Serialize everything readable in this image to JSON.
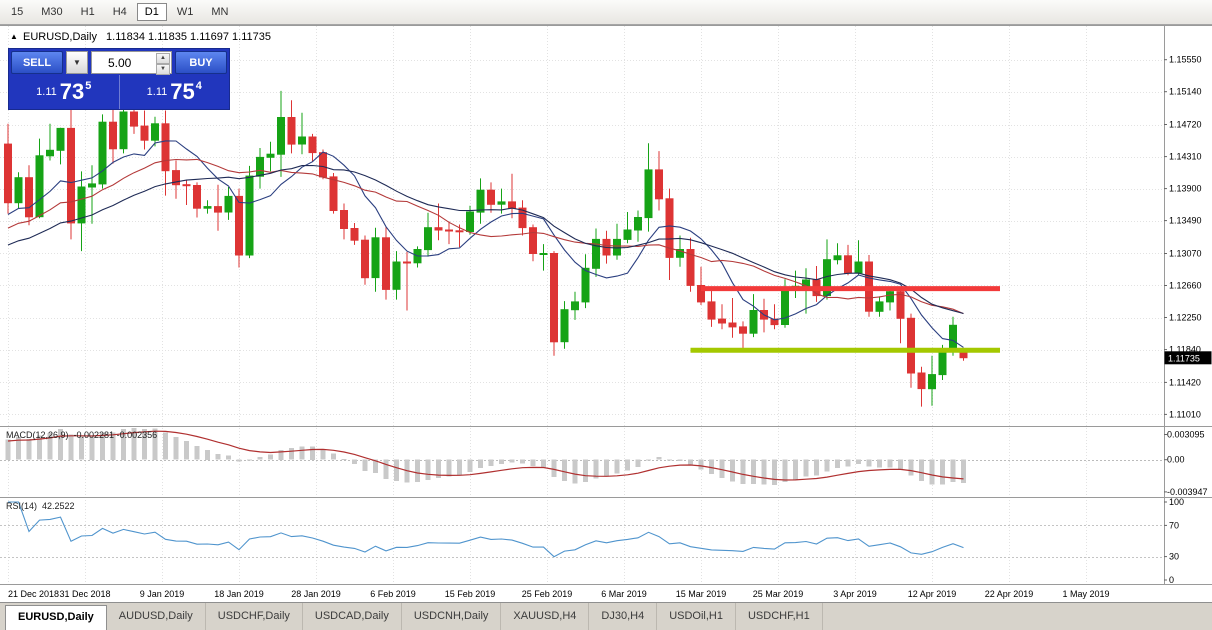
{
  "toolbar": {
    "timeframes": [
      "15",
      "M30",
      "H1",
      "H4",
      "D1",
      "W1",
      "MN"
    ],
    "active_timeframe": "D1"
  },
  "header": {
    "marker": "▲",
    "symbol": "EURUSD,Daily",
    "ohlc": "1.11834 1.11835 1.11697 1.11735"
  },
  "trade_panel": {
    "sell_label": "SELL",
    "buy_label": "BUY",
    "volume": "5.00",
    "sell_price": {
      "prefix": "1.11",
      "big": "73",
      "pip": "5"
    },
    "buy_price": {
      "prefix": "1.11",
      "big": "75",
      "pip": "4"
    }
  },
  "panes": {
    "macd_name": "MACD(12,26,9)",
    "macd_values": "-0.002281 -0.002356",
    "rsi_name": "RSI(14)",
    "rsi_value": "42.2522"
  },
  "tabs": {
    "active_index": 0,
    "items": [
      "EURUSD,Daily",
      "AUDUSD,Daily",
      "USDCHF,Daily",
      "USDCAD,Daily",
      "USDCNH,Daily",
      "XAUUSD,H4",
      "DJ30,H4",
      "USDOil,H1",
      "USDCHF,H1"
    ]
  },
  "colors": {
    "up": "#16a316",
    "down": "#dd3434",
    "resistance": "#f23a3a",
    "support": "#a4c800",
    "macd_bar": "#c9c9c9",
    "macd_signal": "#b03030",
    "rsi": "#4f94cd",
    "grid": "#e2e2e2",
    "panel_blue": "#2136bd",
    "tag_bg": "#000000"
  },
  "chart_data": {
    "type": "candlestick",
    "symbol": "EURUSD",
    "timeframe": "Daily",
    "current_price": "1.11735",
    "ohlc_header": {
      "open": "1.11834",
      "high": "1.11835",
      "low": "1.11697",
      "close": "1.11735"
    },
    "price_axis_labels": [
      "1.15550",
      "1.15140",
      "1.14720",
      "1.14310",
      "1.13900",
      "1.13490",
      "1.13070",
      "1.12660",
      "1.12250",
      "1.11840",
      "1.11420",
      "1.11010"
    ],
    "x_tick_labels": [
      "21 Dec 2018",
      "31 Dec 2018",
      "9 Jan 2019",
      "18 Jan 2019",
      "28 Jan 2019",
      "6 Feb 2019",
      "15 Feb 2019",
      "25 Feb 2019",
      "6 Mar 2019",
      "15 Mar 2019",
      "25 Mar 2019",
      "3 Apr 2019",
      "12 Apr 2019",
      "22 Apr 2019",
      "1 May 2019"
    ],
    "macd": {
      "label": "MACD(12,26,9)",
      "main_value": -0.002281,
      "signal_value": -0.002356,
      "axis_labels": [
        "0.003095",
        "0.00",
        "-0.003947"
      ]
    },
    "rsi": {
      "label": "RSI(14)",
      "value": 42.2522,
      "axis_labels": [
        "100",
        "70",
        "30",
        "0"
      ]
    },
    "lines": {
      "resistance": {
        "price": 1.1262,
        "from_index": 66
      },
      "support": {
        "price": 1.1183,
        "from_index": 65
      }
    },
    "moving_averages": [
      {
        "period": 8,
        "color": "#2b3f80"
      },
      {
        "period": 16,
        "color": "#b43a3a"
      },
      {
        "period": 26,
        "color": "#1f2b56"
      }
    ],
    "candles": [
      [
        1.1447,
        1.1473,
        1.1358,
        1.1372
      ],
      [
        1.1372,
        1.1411,
        1.1365,
        1.1404
      ],
      [
        1.1404,
        1.142,
        1.1343,
        1.1354
      ],
      [
        1.1354,
        1.1454,
        1.1352,
        1.1432
      ],
      [
        1.1432,
        1.1473,
        1.1426,
        1.1439
      ],
      [
        1.1439,
        1.1468,
        1.1421,
        1.1467
      ],
      [
        1.1467,
        1.1497,
        1.1325,
        1.1346
      ],
      [
        1.1346,
        1.1412,
        1.131,
        1.1392
      ],
      [
        1.1392,
        1.142,
        1.1345,
        1.1396
      ],
      [
        1.1396,
        1.1485,
        1.139,
        1.1475
      ],
      [
        1.1475,
        1.1495,
        1.1422,
        1.1441
      ],
      [
        1.1441,
        1.15,
        1.1435,
        1.1488
      ],
      [
        1.1488,
        1.1505,
        1.146,
        1.147
      ],
      [
        1.147,
        1.149,
        1.144,
        1.1452
      ],
      [
        1.1452,
        1.1482,
        1.1444,
        1.1473
      ],
      [
        1.1473,
        1.149,
        1.1381,
        1.1413
      ],
      [
        1.1413,
        1.1426,
        1.1377,
        1.1395
      ],
      [
        1.1395,
        1.1401,
        1.1369,
        1.1394
      ],
      [
        1.1394,
        1.1398,
        1.1353,
        1.1365
      ],
      [
        1.1365,
        1.1375,
        1.1358,
        1.1367
      ],
      [
        1.1367,
        1.1395,
        1.1336,
        1.136
      ],
      [
        1.136,
        1.1392,
        1.135,
        1.138
      ],
      [
        1.138,
        1.139,
        1.1289,
        1.1305
      ],
      [
        1.1305,
        1.1419,
        1.1301,
        1.1406
      ],
      [
        1.1406,
        1.1442,
        1.139,
        1.143
      ],
      [
        1.143,
        1.145,
        1.1412,
        1.1434
      ],
      [
        1.1434,
        1.1515,
        1.1405,
        1.1481
      ],
      [
        1.1481,
        1.1503,
        1.1435,
        1.1447
      ],
      [
        1.1447,
        1.1487,
        1.1434,
        1.1456
      ],
      [
        1.1456,
        1.146,
        1.1424,
        1.1436
      ],
      [
        1.1436,
        1.144,
        1.1402,
        1.1405
      ],
      [
        1.1405,
        1.141,
        1.1358,
        1.1362
      ],
      [
        1.1362,
        1.1371,
        1.1325,
        1.1339
      ],
      [
        1.1339,
        1.1346,
        1.1318,
        1.1324
      ],
      [
        1.1324,
        1.133,
        1.1267,
        1.1276
      ],
      [
        1.1276,
        1.134,
        1.1258,
        1.1327
      ],
      [
        1.1327,
        1.1341,
        1.1248,
        1.1261
      ],
      [
        1.1261,
        1.131,
        1.1248,
        1.1296
      ],
      [
        1.1296,
        1.1309,
        1.1234,
        1.1295
      ],
      [
        1.1295,
        1.1316,
        1.1289,
        1.1312
      ],
      [
        1.1312,
        1.1359,
        1.1303,
        1.134
      ],
      [
        1.134,
        1.1371,
        1.1324,
        1.1337
      ],
      [
        1.1337,
        1.1348,
        1.1319,
        1.1336
      ],
      [
        1.1336,
        1.1344,
        1.1315,
        1.1335
      ],
      [
        1.1335,
        1.1368,
        1.1331,
        1.136
      ],
      [
        1.136,
        1.1403,
        1.1345,
        1.1388
      ],
      [
        1.1388,
        1.1398,
        1.1359,
        1.137
      ],
      [
        1.137,
        1.139,
        1.1358,
        1.1373
      ],
      [
        1.1373,
        1.1409,
        1.1352,
        1.1365
      ],
      [
        1.1365,
        1.1375,
        1.133,
        1.134
      ],
      [
        1.134,
        1.1344,
        1.1297,
        1.1307
      ],
      [
        1.1307,
        1.1319,
        1.1285,
        1.1307
      ],
      [
        1.1307,
        1.131,
        1.1176,
        1.1194
      ],
      [
        1.1194,
        1.1246,
        1.1185,
        1.1235
      ],
      [
        1.1235,
        1.1258,
        1.1222,
        1.1245
      ],
      [
        1.1245,
        1.1306,
        1.1237,
        1.1288
      ],
      [
        1.1288,
        1.1339,
        1.1277,
        1.1325
      ],
      [
        1.1325,
        1.1336,
        1.1294,
        1.1305
      ],
      [
        1.1305,
        1.1345,
        1.1299,
        1.1325
      ],
      [
        1.1325,
        1.136,
        1.132,
        1.1337
      ],
      [
        1.1337,
        1.1362,
        1.1322,
        1.1353
      ],
      [
        1.1353,
        1.1448,
        1.1335,
        1.1414
      ],
      [
        1.1414,
        1.1438,
        1.1362,
        1.1377
      ],
      [
        1.1377,
        1.139,
        1.1273,
        1.1302
      ],
      [
        1.1302,
        1.133,
        1.129,
        1.1312
      ],
      [
        1.1312,
        1.1327,
        1.1258,
        1.1266
      ],
      [
        1.1266,
        1.129,
        1.1241,
        1.1245
      ],
      [
        1.1245,
        1.1263,
        1.1213,
        1.1223
      ],
      [
        1.1223,
        1.1242,
        1.121,
        1.1218
      ],
      [
        1.1218,
        1.125,
        1.1199,
        1.1213
      ],
      [
        1.1213,
        1.122,
        1.1183,
        1.1205
      ],
      [
        1.1205,
        1.1255,
        1.12,
        1.1234
      ],
      [
        1.1234,
        1.1249,
        1.1206,
        1.1223
      ],
      [
        1.1223,
        1.1242,
        1.121,
        1.1216
      ],
      [
        1.1216,
        1.1274,
        1.1212,
        1.1263
      ],
      [
        1.1263,
        1.1285,
        1.125,
        1.1265
      ],
      [
        1.1265,
        1.1288,
        1.123,
        1.1273
      ],
      [
        1.1273,
        1.1291,
        1.1245,
        1.1253
      ],
      [
        1.1253,
        1.1325,
        1.1248,
        1.1299
      ],
      [
        1.1299,
        1.132,
        1.1293,
        1.1304
      ],
      [
        1.1304,
        1.1318,
        1.1279,
        1.1282
      ],
      [
        1.1282,
        1.1324,
        1.128,
        1.1296
      ],
      [
        1.1296,
        1.1305,
        1.1226,
        1.1233
      ],
      [
        1.1233,
        1.1252,
        1.1226,
        1.1245
      ],
      [
        1.1245,
        1.1262,
        1.1234,
        1.1258
      ],
      [
        1.1258,
        1.1262,
        1.1192,
        1.1224
      ],
      [
        1.1224,
        1.123,
        1.1135,
        1.1154
      ],
      [
        1.1154,
        1.1162,
        1.1111,
        1.1134
      ],
      [
        1.1134,
        1.1176,
        1.1112,
        1.1152
      ],
      [
        1.1152,
        1.119,
        1.1145,
        1.1184
      ],
      [
        1.1184,
        1.1226,
        1.1176,
        1.1215
      ],
      [
        1.11834,
        1.11835,
        1.11697,
        1.11735
      ]
    ]
  }
}
